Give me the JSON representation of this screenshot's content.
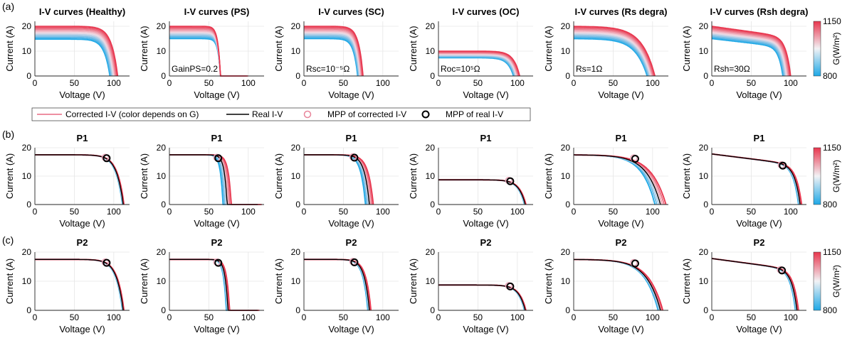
{
  "figure": {
    "row_labels": [
      "(a)",
      "(b)",
      "(c)"
    ],
    "legend": {
      "corrected": "Corrected I-V (color depends on G)",
      "real": "Real I-V",
      "mpp_corrected": "MPP of corrected I-V",
      "mpp_real": "MPP of real I-V"
    },
    "colorbar": {
      "label": "G(W/m²)",
      "max": "1150",
      "min": "800",
      "range": [
        800,
        1150
      ],
      "top_color": "#e8364e",
      "mid_color": "#f2f2f5",
      "bottom_color": "#1ea8e6"
    },
    "colors": {
      "corrected_high": "#e8364e",
      "corrected_mid": "#f2dde6",
      "corrected_low": "#1ea8e6",
      "real": "#000000",
      "grid": "#e6e6e6"
    }
  },
  "chart_data": [
    {
      "type": "line",
      "row": 0,
      "col": 0,
      "title": "I-V curves (Healthy)",
      "xlabel": "Voltage (V)",
      "ylabel": "Current (A)",
      "xlim": [
        0,
        120
      ],
      "ylim": [
        0,
        22
      ],
      "xticks": [
        "0",
        "50",
        "100"
      ],
      "yticks": [
        "0",
        "10",
        "20"
      ],
      "annotation": "",
      "family": {
        "kind": "normal",
        "isc": [
          20,
          14.8
        ],
        "voc": [
          105,
          95
        ]
      }
    },
    {
      "type": "line",
      "row": 0,
      "col": 1,
      "title": "I-V curves (PS)",
      "xlabel": "Voltage (V)",
      "ylabel": "Current (A)",
      "xlim": [
        0,
        120
      ],
      "ylim": [
        0,
        22
      ],
      "xticks": [
        "0",
        "50",
        "100"
      ],
      "yticks": [
        "0",
        "10",
        "20"
      ],
      "annotation": "GainPS=0.2",
      "family": {
        "kind": "ps",
        "isc": [
          20,
          15
        ],
        "voc": [
          100,
          90
        ],
        "step_v": 62,
        "step_frac": 0.58
      }
    },
    {
      "type": "line",
      "row": 0,
      "col": 2,
      "title": "I-V curves (SC)",
      "xlabel": "Voltage (V)",
      "ylabel": "Current (A)",
      "xlim": [
        0,
        120
      ],
      "ylim": [
        0,
        22
      ],
      "xticks": [
        "0",
        "50",
        "100"
      ],
      "yticks": [
        "0",
        "10",
        "20"
      ],
      "annotation": "Rsc=10⁻⁵Ω",
      "family": {
        "kind": "normal",
        "isc": [
          20,
          15
        ],
        "voc": [
          75,
          68
        ]
      }
    },
    {
      "type": "line",
      "row": 0,
      "col": 3,
      "title": "I-V curves (OC)",
      "xlabel": "Voltage (V)",
      "ylabel": "Current (A)",
      "xlim": [
        0,
        120
      ],
      "ylim": [
        0,
        22
      ],
      "xticks": [
        "0",
        "50",
        "100"
      ],
      "yticks": [
        "0",
        "10",
        "20"
      ],
      "annotation": "Roc=10⁵Ω",
      "family": {
        "kind": "normal",
        "isc": [
          10,
          7.3
        ],
        "voc": [
          103,
          95
        ]
      }
    },
    {
      "type": "line",
      "row": 0,
      "col": 4,
      "title": "I-V curves (Rs degra)",
      "xlabel": "Voltage (V)",
      "ylabel": "Current (A)",
      "xlim": [
        0,
        120
      ],
      "ylim": [
        0,
        22
      ],
      "xticks": [
        "0",
        "50",
        "100"
      ],
      "yticks": [
        "0",
        "10",
        "20"
      ],
      "annotation": "Rs=1Ω",
      "family": {
        "kind": "rs",
        "isc": [
          20,
          15
        ],
        "voc": [
          103,
          93
        ]
      }
    },
    {
      "type": "line",
      "row": 0,
      "col": 5,
      "title": "I-V curves (Rsh degra)",
      "xlabel": "Voltage (V)",
      "ylabel": "Current (A)",
      "xlim": [
        0,
        120
      ],
      "ylim": [
        0,
        22
      ],
      "xticks": [
        "0",
        "50",
        "100"
      ],
      "yticks": [
        "0",
        "10",
        "20"
      ],
      "annotation": "Rsh=30Ω",
      "family": {
        "kind": "rsh",
        "isc": [
          20,
          15
        ],
        "voc": [
          100,
          90
        ]
      },
      "colorbar": true
    },
    {
      "type": "line",
      "row": 1,
      "col": 0,
      "title": "P1",
      "xlabel": "Voltage (V)",
      "ylabel": "Current (A)",
      "xlim": [
        0,
        120
      ],
      "ylim": [
        0,
        20
      ],
      "xticks": [
        "0",
        "50",
        "100"
      ],
      "yticks": [
        "0",
        "10",
        "20"
      ],
      "real": {
        "kind": "normal",
        "isc": 17.5,
        "voc": 112
      },
      "corrected": {
        "kind": "normal",
        "spread": 1
      },
      "mpp": [
        91,
        16.3
      ]
    },
    {
      "type": "line",
      "row": 1,
      "col": 1,
      "title": "P1",
      "xlabel": "Voltage (V)",
      "ylabel": "Current (A)",
      "xlim": [
        0,
        120
      ],
      "ylim": [
        0,
        20
      ],
      "xticks": [
        "0",
        "50",
        "100"
      ],
      "yticks": [
        "0",
        "10",
        "20"
      ],
      "real": {
        "kind": "ps",
        "isc": 17.5,
        "voc": 112,
        "step_v": 70,
        "step_frac": 0.6
      },
      "corrected": {
        "kind": "ps",
        "spread": 5
      },
      "mpp": [
        62,
        16.3
      ]
    },
    {
      "type": "line",
      "row": 1,
      "col": 2,
      "title": "P1",
      "xlabel": "Voltage (V)",
      "ylabel": "Current (A)",
      "xlim": [
        0,
        120
      ],
      "ylim": [
        0,
        20
      ],
      "xticks": [
        "0",
        "50",
        "100"
      ],
      "yticks": [
        "0",
        "10",
        "20"
      ],
      "real": {
        "kind": "normal",
        "isc": 17.5,
        "voc": 83
      },
      "corrected": {
        "kind": "normal",
        "spread": 5
      },
      "mpp": [
        64,
        16.5
      ]
    },
    {
      "type": "line",
      "row": 1,
      "col": 3,
      "title": "P1",
      "xlabel": "Voltage (V)",
      "ylabel": "Current (A)",
      "xlim": [
        0,
        120
      ],
      "ylim": [
        0,
        20
      ],
      "xticks": [
        "0",
        "50",
        "100"
      ],
      "yticks": [
        "0",
        "10",
        "20"
      ],
      "real": {
        "kind": "normal",
        "isc": 8.7,
        "voc": 110
      },
      "corrected": {
        "kind": "normal",
        "spread": 1
      },
      "mpp": [
        91,
        8.2
      ]
    },
    {
      "type": "line",
      "row": 1,
      "col": 4,
      "title": "P1",
      "xlabel": "Voltage (V)",
      "ylabel": "Current (A)",
      "xlim": [
        0,
        120
      ],
      "ylim": [
        0,
        20
      ],
      "xticks": [
        "0",
        "50",
        "100"
      ],
      "yticks": [
        "0",
        "10",
        "20"
      ],
      "real": {
        "kind": "rs",
        "isc": 17.5,
        "voc": 110
      },
      "corrected": {
        "kind": "rs",
        "spread": 7
      },
      "mpp": [
        78,
        16.1
      ]
    },
    {
      "type": "line",
      "row": 1,
      "col": 5,
      "title": "P1",
      "xlabel": "Voltage (V)",
      "ylabel": "Current (A)",
      "xlim": [
        0,
        120
      ],
      "ylim": [
        0,
        20
      ],
      "xticks": [
        "0",
        "50",
        "100"
      ],
      "yticks": [
        "0",
        "10",
        "20"
      ],
      "real": {
        "kind": "rsh",
        "isc": 17.8,
        "voc": 112
      },
      "corrected": {
        "kind": "rsh",
        "spread": 2
      },
      "mpp": [
        90,
        13.7
      ],
      "colorbar": true
    },
    {
      "type": "line",
      "row": 2,
      "col": 0,
      "title": "P2",
      "xlabel": "Voltage (V)",
      "ylabel": "Current (A)",
      "xlim": [
        0,
        120
      ],
      "ylim": [
        0,
        20
      ],
      "xticks": [
        "0",
        "50",
        "100"
      ],
      "yticks": [
        "0",
        "10",
        "20"
      ],
      "real": {
        "kind": "normal",
        "isc": 17.5,
        "voc": 112
      },
      "corrected": {
        "kind": "normal",
        "spread": 1
      },
      "mpp": [
        91,
        16.3
      ]
    },
    {
      "type": "line",
      "row": 2,
      "col": 1,
      "title": "P2",
      "xlabel": "Voltage (V)",
      "ylabel": "Current (A)",
      "xlim": [
        0,
        120
      ],
      "ylim": [
        0,
        20
      ],
      "xticks": [
        "0",
        "50",
        "100"
      ],
      "yticks": [
        "0",
        "10",
        "20"
      ],
      "real": {
        "kind": "ps",
        "isc": 17.5,
        "voc": 112,
        "step_v": 71,
        "step_frac": 0.6
      },
      "corrected": {
        "kind": "ps",
        "spread": 2
      },
      "mpp": [
        62,
        16.3
      ]
    },
    {
      "type": "line",
      "row": 2,
      "col": 2,
      "title": "P2",
      "xlabel": "Voltage (V)",
      "ylabel": "Current (A)",
      "xlim": [
        0,
        120
      ],
      "ylim": [
        0,
        20
      ],
      "xticks": [
        "0",
        "50",
        "100"
      ],
      "yticks": [
        "0",
        "10",
        "20"
      ],
      "real": {
        "kind": "normal",
        "isc": 17.5,
        "voc": 83
      },
      "corrected": {
        "kind": "normal",
        "spread": 2
      },
      "mpp": [
        64,
        16.5
      ]
    },
    {
      "type": "line",
      "row": 2,
      "col": 3,
      "title": "P2",
      "xlabel": "Voltage (V)",
      "ylabel": "Current (A)",
      "xlim": [
        0,
        120
      ],
      "ylim": [
        0,
        20
      ],
      "xticks": [
        "0",
        "50",
        "100"
      ],
      "yticks": [
        "0",
        "10",
        "20"
      ],
      "real": {
        "kind": "normal",
        "isc": 8.7,
        "voc": 110
      },
      "corrected": {
        "kind": "normal",
        "spread": 1
      },
      "mpp": [
        91,
        8.2
      ]
    },
    {
      "type": "line",
      "row": 2,
      "col": 4,
      "title": "P2",
      "xlabel": "Voltage (V)",
      "ylabel": "Current (A)",
      "xlim": [
        0,
        120
      ],
      "ylim": [
        0,
        20
      ],
      "xticks": [
        "0",
        "50",
        "100"
      ],
      "yticks": [
        "0",
        "10",
        "20"
      ],
      "real": {
        "kind": "rs",
        "isc": 17.5,
        "voc": 110
      },
      "corrected": {
        "kind": "rs",
        "spread": 3
      },
      "mpp": [
        78,
        16.1
      ]
    },
    {
      "type": "line",
      "row": 2,
      "col": 5,
      "title": "P2",
      "xlabel": "Voltage (V)",
      "ylabel": "Current (A)",
      "xlim": [
        0,
        120
      ],
      "ylim": [
        0,
        20
      ],
      "xticks": [
        "0",
        "50",
        "100"
      ],
      "yticks": [
        "0",
        "10",
        "20"
      ],
      "real": {
        "kind": "rsh",
        "isc": 17.8,
        "voc": 108
      },
      "corrected": {
        "kind": "rsh",
        "spread": 2
      },
      "mpp": [
        89,
        13.7
      ],
      "colorbar": true
    }
  ]
}
